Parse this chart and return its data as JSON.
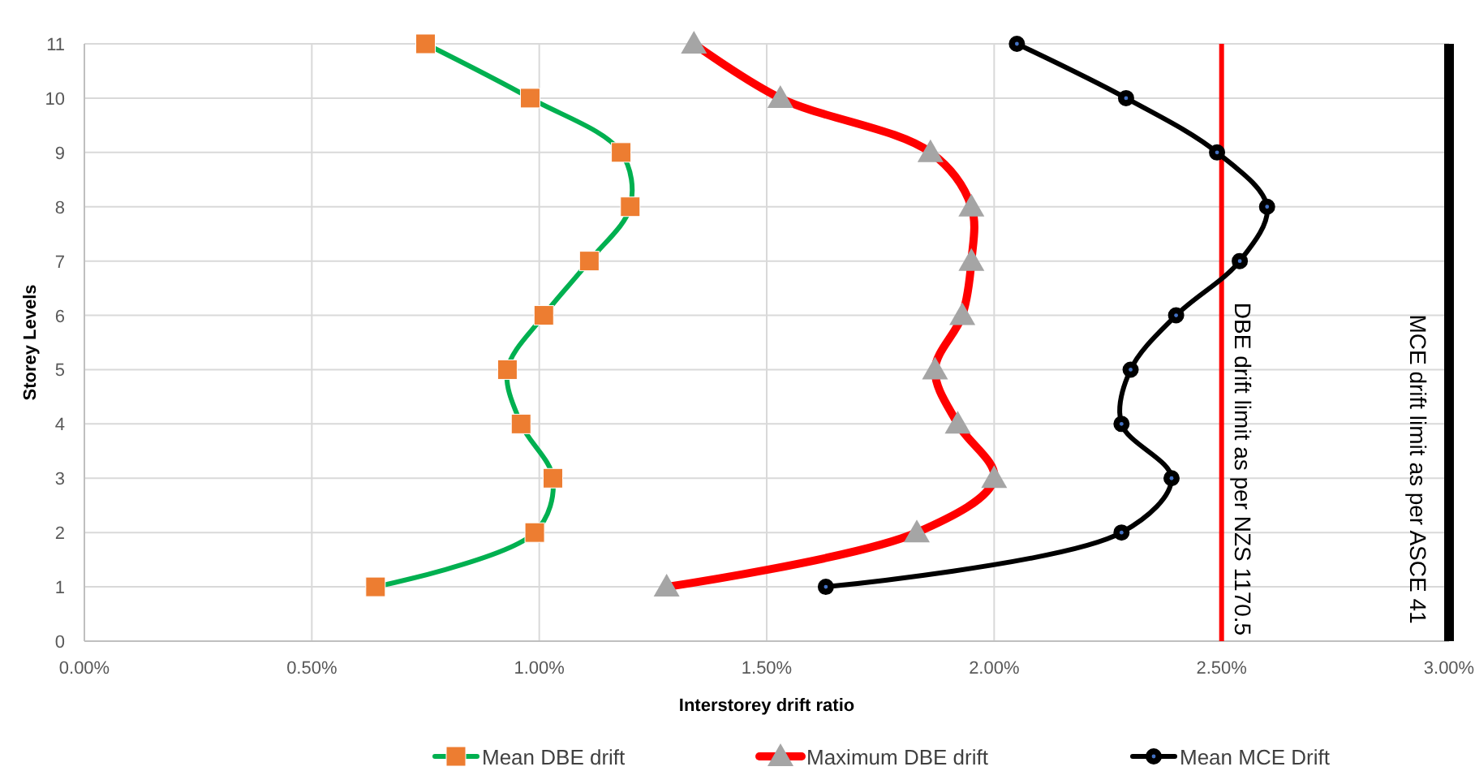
{
  "chart_data": {
    "type": "line",
    "xlabel": "Interstorey drift ratio",
    "ylabel": "Storey Levels",
    "orientation": "horizontal",
    "categories": [
      "11",
      "10",
      "9",
      "8",
      "7",
      "6",
      "5",
      "4",
      "3",
      "2",
      "1",
      "0"
    ],
    "xlim": [
      0,
      3
    ],
    "xticks": [
      {
        "value": 0,
        "label": "0.00%"
      },
      {
        "value": 0.5,
        "label": "0.50%"
      },
      {
        "value": 1,
        "label": "1.00%"
      },
      {
        "value": 1.5,
        "label": "1.50%"
      },
      {
        "value": 2,
        "label": "2.00%"
      },
      {
        "value": 2.5,
        "label": "2.50%"
      },
      {
        "value": 3,
        "label": "3.00%"
      }
    ],
    "grid": true,
    "legend": "bottom",
    "series": [
      {
        "name": "Mean DBE drift",
        "color": "#00b050",
        "marker": "square",
        "values": [
          0.75,
          0.98,
          1.18,
          1.2,
          1.11,
          1.01,
          0.93,
          0.96,
          1.03,
          0.99,
          0.64,
          null
        ]
      },
      {
        "name": "Maximum DBE drift",
        "color": "#ff0000",
        "marker": "triangle",
        "values": [
          1.34,
          1.53,
          1.86,
          1.95,
          1.95,
          1.93,
          1.87,
          1.92,
          2.0,
          1.83,
          1.28,
          null
        ]
      },
      {
        "name": "Mean MCE Drift",
        "color": "#000000",
        "marker": "circle",
        "values": [
          2.05,
          2.29,
          2.49,
          2.6,
          2.54,
          2.4,
          2.3,
          2.28,
          2.39,
          2.28,
          1.63,
          null
        ]
      }
    ],
    "ref_lines": [
      {
        "axis": "x",
        "value": 2.5,
        "label": "DBE drift limit as per NZS 1170.5",
        "color": "#ff0000"
      },
      {
        "axis": "x",
        "value": 3,
        "label": "MCE drift limit as per ASCE 41",
        "color": "#000000"
      }
    ]
  }
}
